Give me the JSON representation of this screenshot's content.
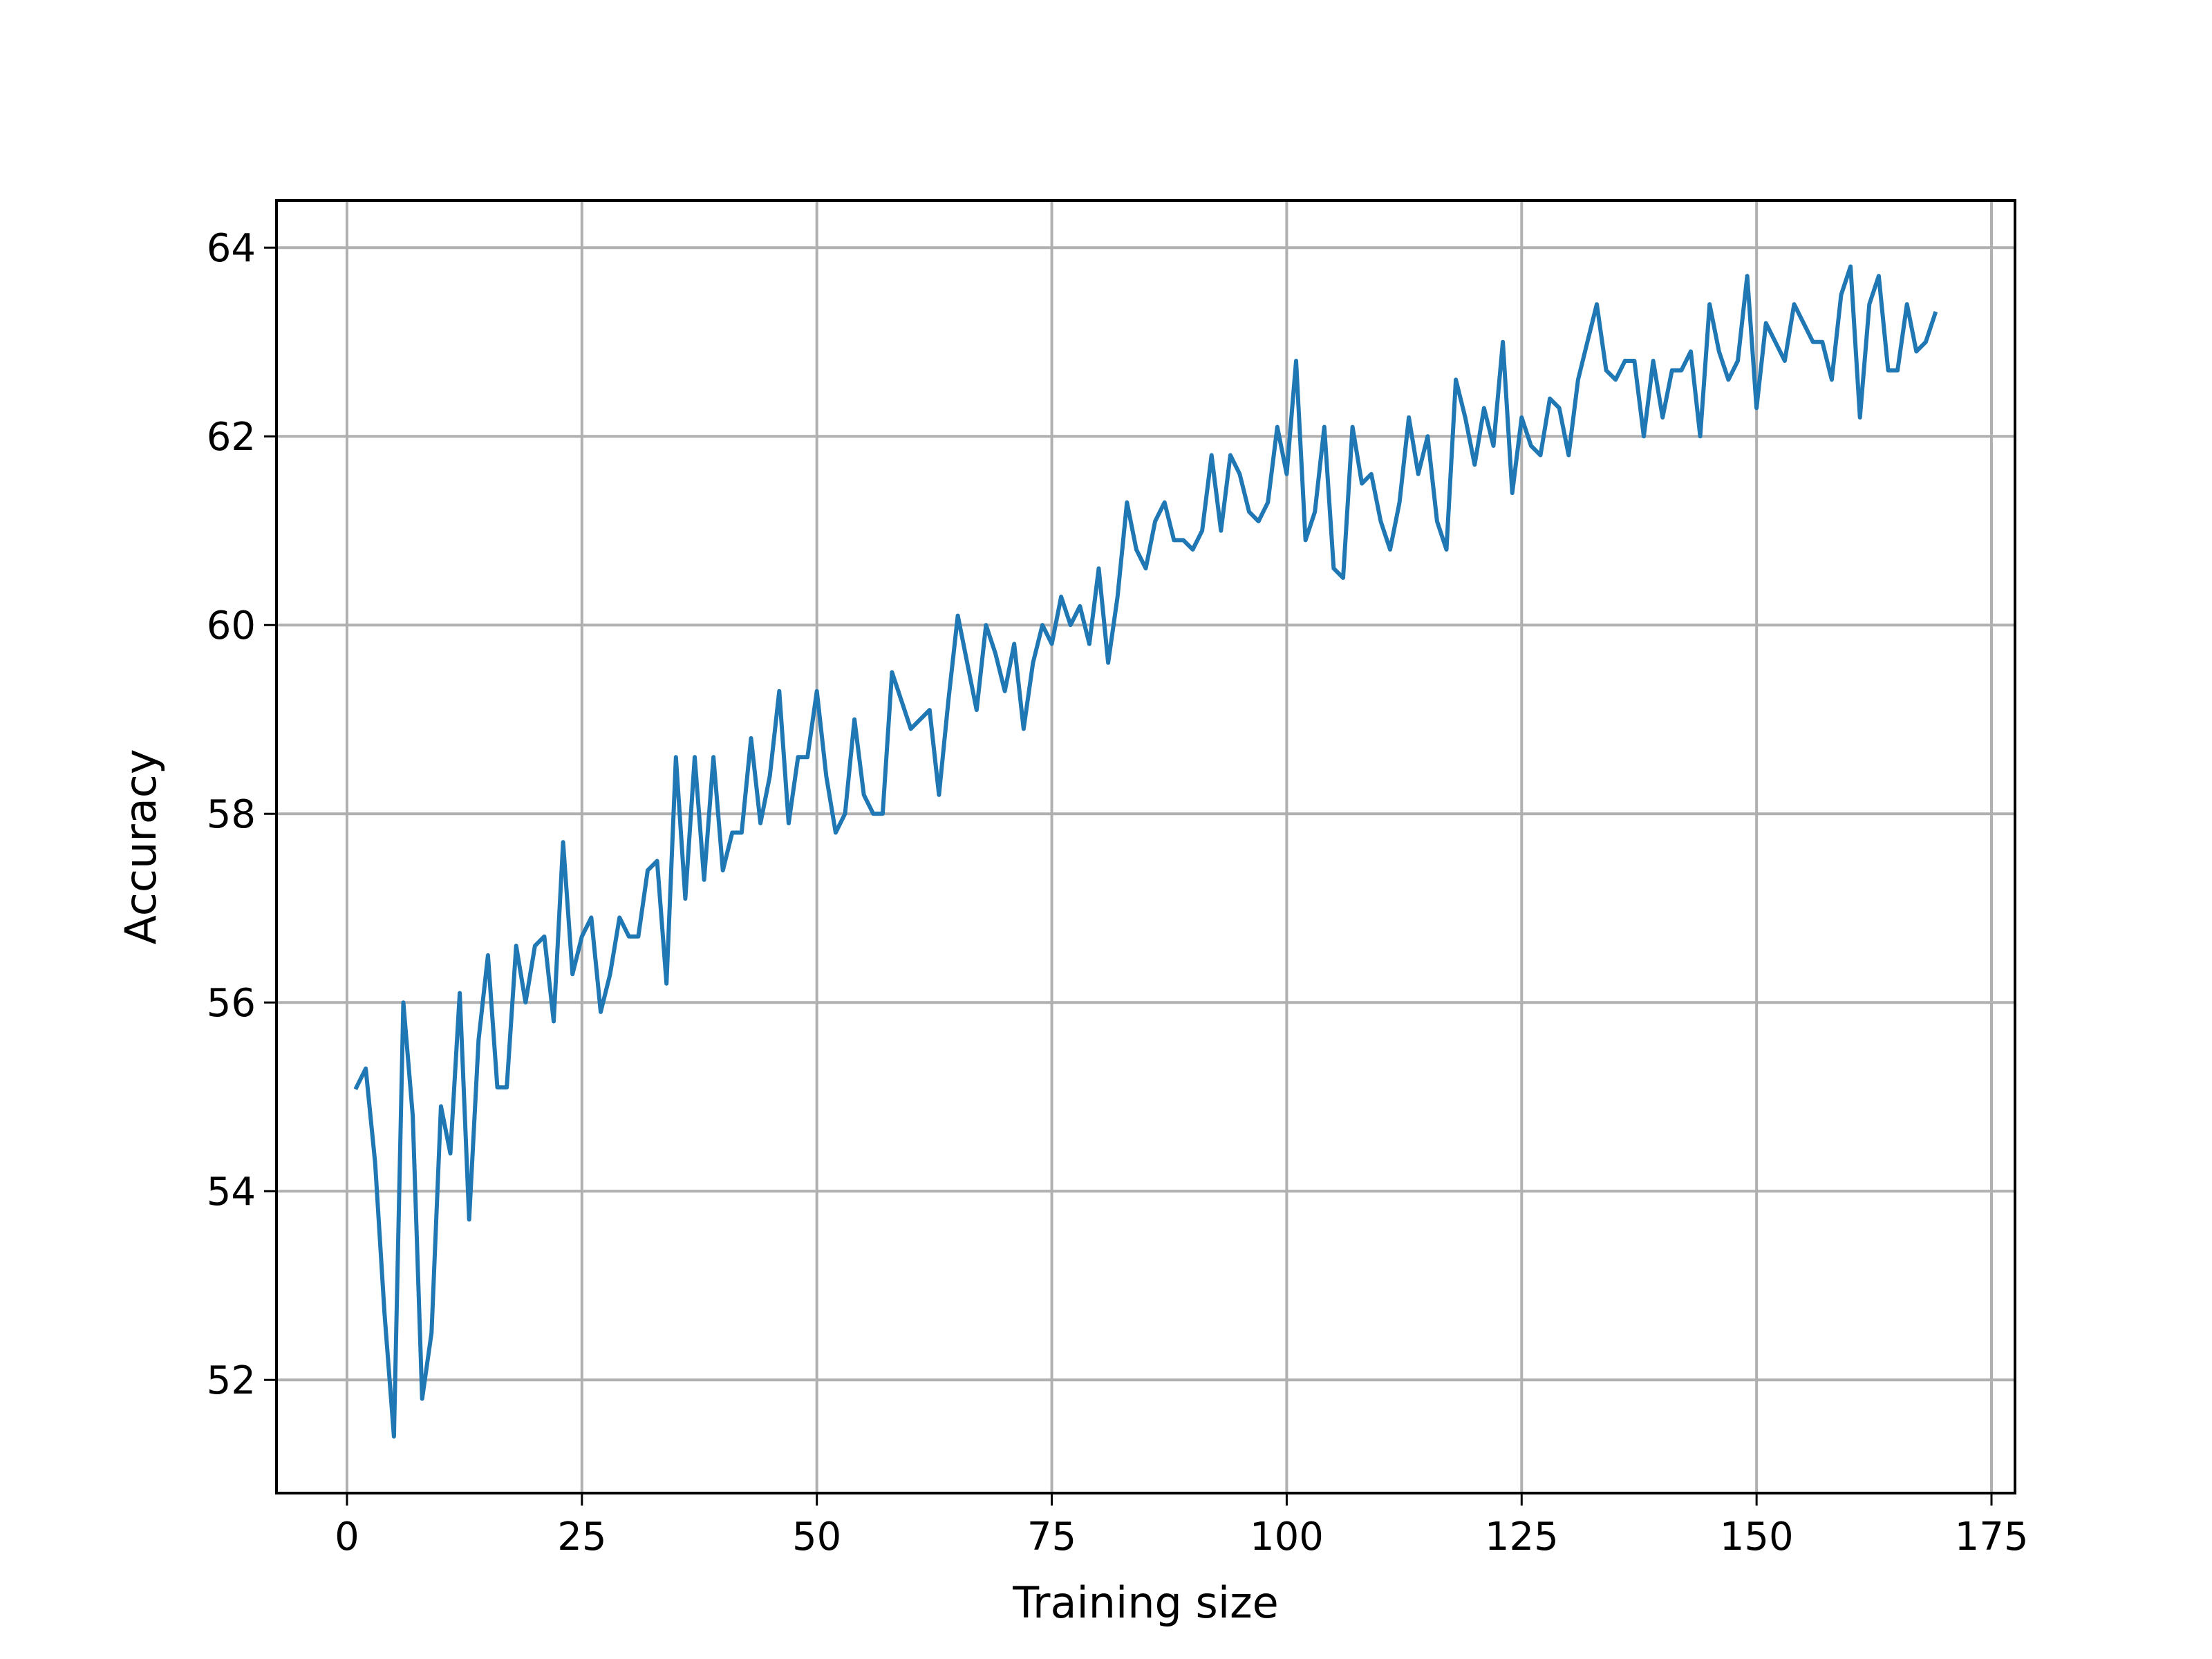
{
  "chart_data": {
    "type": "line",
    "xlabel": "Training size",
    "ylabel": "Accuracy",
    "xlim": [
      -7.5,
      177.5
    ],
    "ylim": [
      50.8,
      64.5
    ],
    "xticks": [
      0,
      25,
      50,
      75,
      100,
      125,
      150,
      175
    ],
    "yticks": [
      52,
      54,
      56,
      58,
      60,
      62,
      64
    ],
    "grid": true,
    "series": [
      {
        "color": "#1f77b4",
        "x": [
          1,
          2,
          3,
          4,
          5,
          6,
          7,
          8,
          9,
          10,
          11,
          12,
          13,
          14,
          15,
          16,
          17,
          18,
          19,
          20,
          21,
          22,
          23,
          24,
          25,
          26,
          27,
          28,
          29,
          30,
          31,
          32,
          33,
          34,
          35,
          36,
          37,
          38,
          39,
          40,
          41,
          42,
          43,
          44,
          45,
          46,
          47,
          48,
          49,
          50,
          51,
          52,
          53,
          54,
          55,
          56,
          57,
          58,
          59,
          60,
          61,
          62,
          63,
          64,
          65,
          66,
          67,
          68,
          69,
          70,
          71,
          72,
          73,
          74,
          75,
          76,
          77,
          78,
          79,
          80,
          81,
          82,
          83,
          84,
          85,
          86,
          87,
          88,
          89,
          90,
          91,
          92,
          93,
          94,
          95,
          96,
          97,
          98,
          99,
          100,
          101,
          102,
          103,
          104,
          105,
          106,
          107,
          108,
          109,
          110,
          111,
          112,
          113,
          114,
          115,
          116,
          117,
          118,
          119,
          120,
          121,
          122,
          123,
          124,
          125,
          126,
          127,
          128,
          129,
          130,
          131,
          132,
          133,
          134,
          135,
          136,
          137,
          138,
          139,
          140,
          141,
          142,
          143,
          144,
          145,
          146,
          147,
          148,
          149,
          150,
          151,
          152,
          153,
          154,
          155,
          156,
          157,
          158,
          159,
          160,
          161,
          162,
          163,
          164,
          165,
          166,
          167,
          168,
          169
        ],
        "y": [
          55.1,
          55.3,
          54.3,
          52.7,
          51.4,
          56.0,
          54.8,
          51.8,
          52.5,
          54.9,
          54.4,
          56.1,
          53.7,
          55.6,
          56.5,
          55.1,
          55.1,
          56.6,
          56.0,
          56.6,
          56.7,
          55.8,
          57.7,
          56.3,
          56.7,
          56.9,
          55.9,
          56.3,
          56.9,
          56.7,
          56.7,
          57.4,
          57.5,
          56.2,
          58.6,
          57.1,
          58.6,
          57.3,
          58.6,
          57.4,
          57.8,
          57.8,
          58.8,
          57.9,
          58.4,
          59.3,
          57.9,
          58.6,
          58.6,
          59.3,
          58.4,
          57.8,
          58.0,
          59.0,
          58.2,
          58.0,
          58.0,
          59.5,
          59.2,
          58.9,
          59.0,
          59.1,
          58.2,
          59.2,
          60.1,
          59.6,
          59.1,
          60.0,
          59.7,
          59.3,
          59.8,
          58.9,
          59.6,
          60.0,
          59.8,
          60.3,
          60.0,
          60.2,
          59.8,
          60.6,
          59.6,
          60.3,
          61.3,
          60.8,
          60.6,
          61.1,
          61.3,
          60.9,
          60.9,
          60.8,
          61.0,
          61.8,
          61.0,
          61.8,
          61.6,
          61.2,
          61.1,
          61.3,
          62.1,
          61.6,
          62.8,
          60.9,
          61.2,
          62.1,
          60.6,
          60.5,
          62.1,
          61.5,
          61.6,
          61.1,
          60.8,
          61.3,
          62.2,
          61.6,
          62.0,
          61.1,
          60.8,
          62.6,
          62.2,
          61.7,
          62.3,
          61.9,
          63.0,
          61.4,
          62.2,
          61.9,
          61.8,
          62.4,
          62.3,
          61.8,
          62.6,
          63.0,
          63.4,
          62.7,
          62.6,
          62.8,
          62.8,
          62.0,
          62.8,
          62.2,
          62.7,
          62.7,
          62.9,
          62.0,
          63.4,
          62.9,
          62.6,
          62.8,
          63.7,
          62.3,
          63.2,
          63.0,
          62.8,
          63.4,
          63.2,
          63.0,
          63.0,
          62.6,
          63.5,
          63.8,
          62.2,
          63.4,
          63.7,
          62.7,
          62.7,
          63.4,
          62.9,
          63.0,
          63.3
        ]
      }
    ]
  }
}
